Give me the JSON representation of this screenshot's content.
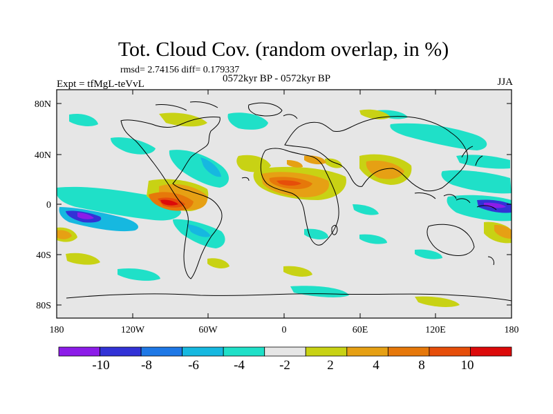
{
  "title": "Tot. Cloud Cov. (random overlap, in %)",
  "stats": "rmsd= 2.74156  diff= 0.179337",
  "subtitle_left": "Expt = tfMgL-teVvL",
  "subtitle_center": "0572kyr BP - 0572kyr BP",
  "subtitle_right": "JJA",
  "x_ticks": [
    "180",
    "120W",
    "60W",
    "0",
    "60E",
    "120E",
    "180"
  ],
  "y_ticks": [
    "80N",
    "40N",
    "0",
    "40S",
    "80S"
  ],
  "colorbar": {
    "colors": [
      "#8c1ce8",
      "#3232d6",
      "#1e78e6",
      "#16b8e0",
      "#1fe0c8",
      "#e6e6e6",
      "#c8d214",
      "#e6a014",
      "#e6780a",
      "#e64e0a",
      "#dc0a0a"
    ],
    "labels": [
      "-10",
      "-8",
      "-6",
      "-4",
      "-2",
      "2",
      "4",
      "8",
      "10"
    ]
  }
}
